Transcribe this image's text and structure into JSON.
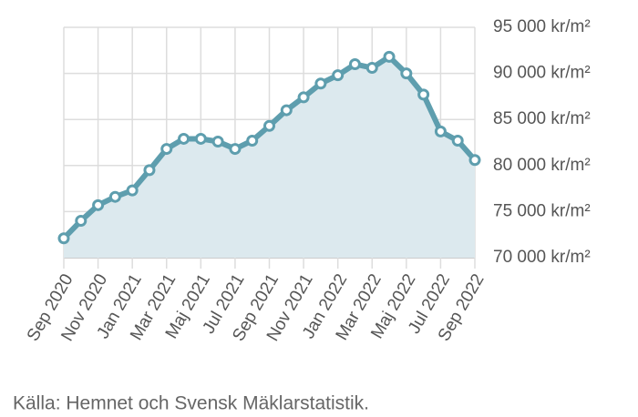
{
  "chart_data": {
    "type": "area",
    "categories": [
      "Sep 2020",
      null,
      "Nov 2020",
      null,
      "Jan 2021",
      null,
      "Mar 2021",
      null,
      "Maj 2021",
      null,
      "Jul 2021",
      null,
      "Sep 2021",
      null,
      "Nov 2021",
      null,
      "Jan 2022",
      null,
      "Mar 2022",
      null,
      "Maj 2022",
      null,
      "Jul 2022",
      null,
      "Sep 2022"
    ],
    "values": [
      72100,
      74000,
      75700,
      76600,
      77300,
      79500,
      81800,
      82900,
      82900,
      82600,
      81800,
      82700,
      84300,
      86000,
      87400,
      88900,
      89800,
      91000,
      90600,
      91800,
      90000,
      87700,
      83700,
      82700,
      80600
    ],
    "color": "#5e9eae",
    "fill_color": "#dce9ee",
    "ylim": [
      70000,
      95000
    ],
    "yticks": [
      {
        "value": 70000,
        "label": "70 000 kr/m²"
      },
      {
        "value": 75000,
        "label": "75 000 kr/m²"
      },
      {
        "value": 80000,
        "label": "80 000 kr/m²"
      },
      {
        "value": 85000,
        "label": "85 000 kr/m²"
      },
      {
        "value": 90000,
        "label": "90 000 kr/m²"
      },
      {
        "value": 95000,
        "label": "95 000 kr/m²"
      }
    ],
    "grid": true,
    "source": "Källa: Hemnet och Svensk Mäklarstatistik."
  }
}
